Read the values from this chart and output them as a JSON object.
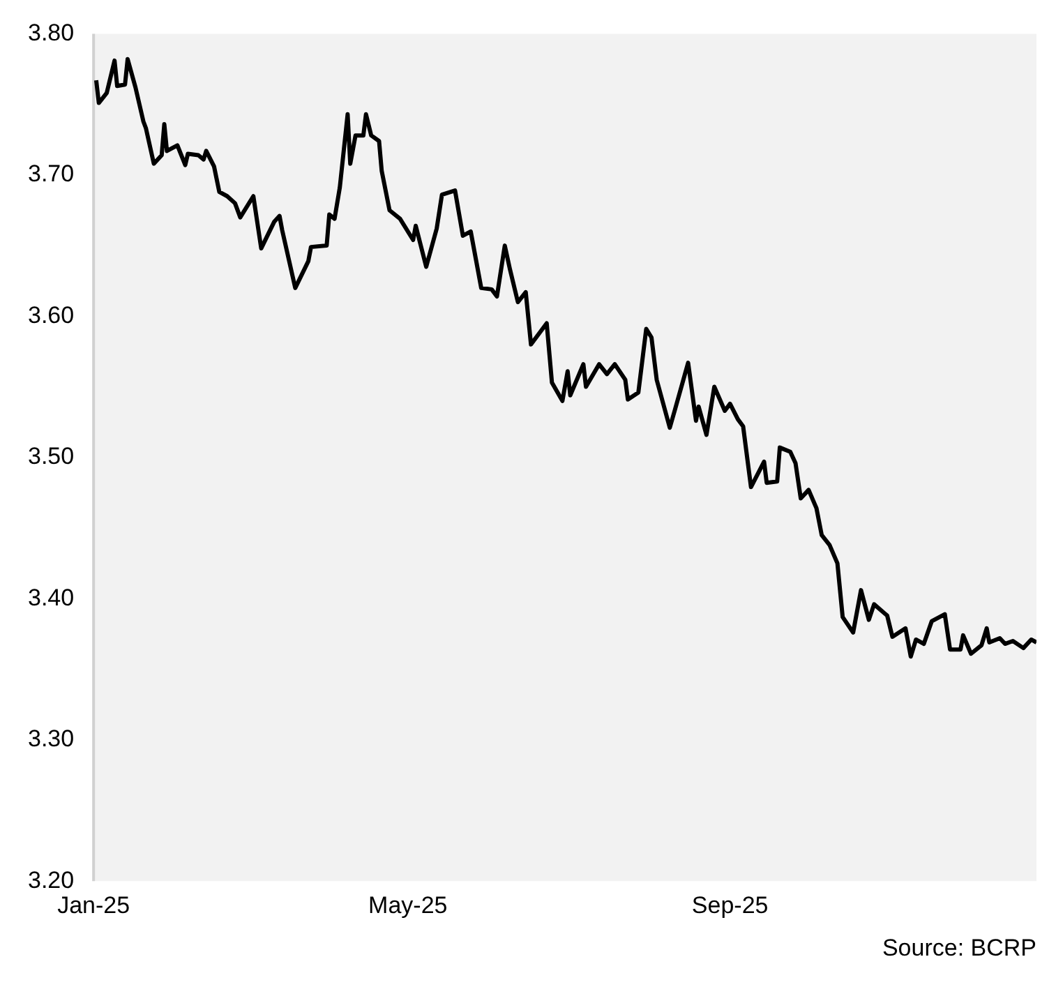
{
  "chart_data": {
    "type": "line",
    "color": "#000000",
    "marker": "none",
    "x": [
      "2025-01-02",
      "2025-01-03",
      "2025-01-06",
      "2025-01-09",
      "2025-01-10",
      "2025-01-13",
      "2025-01-14",
      "2025-01-17",
      "2025-01-20",
      "2025-01-21",
      "2025-01-24",
      "2025-01-27",
      "2025-01-28",
      "2025-01-29",
      "2025-02-02",
      "2025-02-05",
      "2025-02-06",
      "2025-02-10",
      "2025-02-12",
      "2025-02-13",
      "2025-02-16",
      "2025-02-18",
      "2025-02-21",
      "2025-02-24",
      "2025-02-26",
      "2025-03-03",
      "2025-03-06",
      "2025-03-11",
      "2025-03-13",
      "2025-03-14",
      "2025-03-19",
      "2025-03-24",
      "2025-03-25",
      "2025-03-31",
      "2025-04-01",
      "2025-04-03",
      "2025-04-05",
      "2025-04-08",
      "2025-04-09",
      "2025-04-11",
      "2025-04-14",
      "2025-04-15",
      "2025-04-17",
      "2025-04-20",
      "2025-04-21",
      "2025-04-24",
      "2025-04-28",
      "2025-05-03",
      "2025-05-04",
      "2025-05-08",
      "2025-05-12",
      "2025-05-14",
      "2025-05-19",
      "2025-05-22",
      "2025-05-25",
      "2025-05-27",
      "2025-05-29",
      "2025-06-02",
      "2025-06-04",
      "2025-06-07",
      "2025-06-09",
      "2025-06-12",
      "2025-06-15",
      "2025-06-17",
      "2025-06-23",
      "2025-06-25",
      "2025-06-29",
      "2025-07-01",
      "2025-07-02",
      "2025-07-07",
      "2025-07-08",
      "2025-07-13",
      "2025-07-16",
      "2025-07-19",
      "2025-07-23",
      "2025-07-24",
      "2025-07-28",
      "2025-07-31",
      "2025-08-02",
      "2025-08-04",
      "2025-08-09",
      "2025-08-11",
      "2025-08-16",
      "2025-08-19",
      "2025-08-20",
      "2025-08-23",
      "2025-08-26",
      "2025-08-30",
      "2025-09-01",
      "2025-09-04",
      "2025-09-06",
      "2025-09-09",
      "2025-09-14",
      "2025-09-15",
      "2025-09-19",
      "2025-09-20",
      "2025-09-24",
      "2025-09-26",
      "2025-09-28",
      "2025-10-01",
      "2025-10-04",
      "2025-10-06",
      "2025-10-09",
      "2025-10-12",
      "2025-10-14",
      "2025-10-18",
      "2025-10-21",
      "2025-10-24",
      "2025-10-26",
      "2025-10-31",
      "2025-11-02",
      "2025-11-07",
      "2025-11-09",
      "2025-11-11",
      "2025-11-14",
      "2025-11-17",
      "2025-11-22",
      "2025-11-24",
      "2025-11-28",
      "2025-11-29",
      "2025-12-02",
      "2025-12-06",
      "2025-12-08",
      "2025-12-09",
      "2025-12-13",
      "2025-12-15",
      "2025-12-18",
      "2025-12-22",
      "2025-12-25",
      "2025-12-27"
    ],
    "values": [
      3.767,
      3.751,
      3.758,
      3.781,
      3.763,
      3.764,
      3.782,
      3.762,
      3.738,
      3.733,
      3.708,
      3.714,
      3.736,
      3.717,
      3.721,
      3.707,
      3.715,
      3.714,
      3.711,
      3.717,
      3.706,
      3.688,
      3.685,
      3.68,
      3.67,
      3.685,
      3.648,
      3.667,
      3.671,
      3.661,
      3.62,
      3.639,
      3.649,
      3.65,
      3.672,
      3.669,
      3.691,
      3.743,
      3.708,
      3.728,
      3.728,
      3.743,
      3.728,
      3.724,
      3.703,
      3.675,
      3.669,
      3.654,
      3.664,
      3.635,
      3.662,
      3.686,
      3.689,
      3.657,
      3.66,
      3.64,
      3.62,
      3.619,
      3.614,
      3.65,
      3.633,
      3.61,
      3.617,
      3.58,
      3.595,
      3.553,
      3.54,
      3.561,
      3.544,
      3.566,
      3.55,
      3.566,
      3.559,
      3.566,
      3.555,
      3.541,
      3.546,
      3.591,
      3.585,
      3.555,
      3.521,
      3.534,
      3.567,
      3.526,
      3.536,
      3.516,
      3.55,
      3.533,
      3.538,
      3.527,
      3.522,
      3.479,
      3.497,
      3.482,
      3.483,
      3.507,
      3.504,
      3.496,
      3.471,
      3.477,
      3.464,
      3.445,
      3.438,
      3.425,
      3.387,
      3.376,
      3.406,
      3.385,
      3.396,
      3.388,
      3.373,
      3.379,
      3.359,
      3.371,
      3.368,
      3.384,
      3.389,
      3.364,
      3.364,
      3.374,
      3.361,
      3.367,
      3.379,
      3.369,
      3.372,
      3.368,
      3.37,
      3.365,
      3.371,
      3.369
    ],
    "xlim": [
      "2025-01-01",
      "2025-12-27"
    ],
    "xticks": [
      {
        "value": "2025-01-01",
        "label": "Jan-25"
      },
      {
        "value": "2025-05-01",
        "label": "May-25"
      },
      {
        "value": "2025-09-01",
        "label": "Sep-25"
      }
    ],
    "ylim": [
      3.2,
      3.8
    ],
    "yticks": [
      {
        "value": 3.2,
        "label": "3.20"
      },
      {
        "value": 3.3,
        "label": "3.30"
      },
      {
        "value": 3.4,
        "label": "3.40"
      },
      {
        "value": 3.5,
        "label": "3.50"
      },
      {
        "value": 3.6,
        "label": "3.60"
      },
      {
        "value": 3.7,
        "label": "3.70"
      },
      {
        "value": 3.8,
        "label": "3.80"
      }
    ],
    "annotations": [
      "Source: BCRP"
    ]
  }
}
